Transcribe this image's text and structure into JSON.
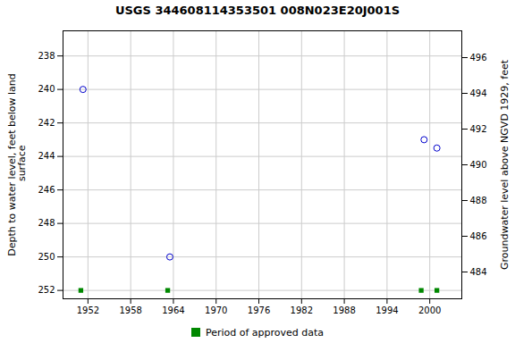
{
  "chart_data": {
    "type": "scatter",
    "title": "USGS 344608114353501 008N023E20J001S",
    "ylabel": "Depth to water level, feet below land\n surface",
    "y2label": "Groundwater level above NGVD 1929, feet",
    "series": [
      {
        "color": "#0000cc",
        "marker": "circle",
        "x": [
          1951.3,
          1963.5,
          1999.2,
          2001.0
        ],
        "values": [
          240.0,
          250.0,
          243.0,
          243.5
        ]
      },
      {
        "name": "Period of approved data",
        "color": "#008800",
        "marker": "square",
        "x": [
          1951.0,
          1963.2,
          1998.8,
          2001.0
        ],
        "values": [
          252.0,
          252.0,
          252.0,
          252.0
        ]
      }
    ],
    "xlim": [
      1948.5,
      2004.5
    ],
    "xticks": [
      1952,
      1958,
      1964,
      1970,
      1976,
      1982,
      1988,
      1994,
      2000
    ],
    "ylim": [
      252.5,
      236.5
    ],
    "yticks": [
      238,
      240,
      242,
      244,
      246,
      248,
      250,
      252
    ],
    "y2lim": [
      482.5,
      497.5
    ],
    "y2ticks": [
      496,
      494,
      492,
      490,
      488,
      486,
      484
    ],
    "grid": true,
    "legend": "bottom"
  }
}
